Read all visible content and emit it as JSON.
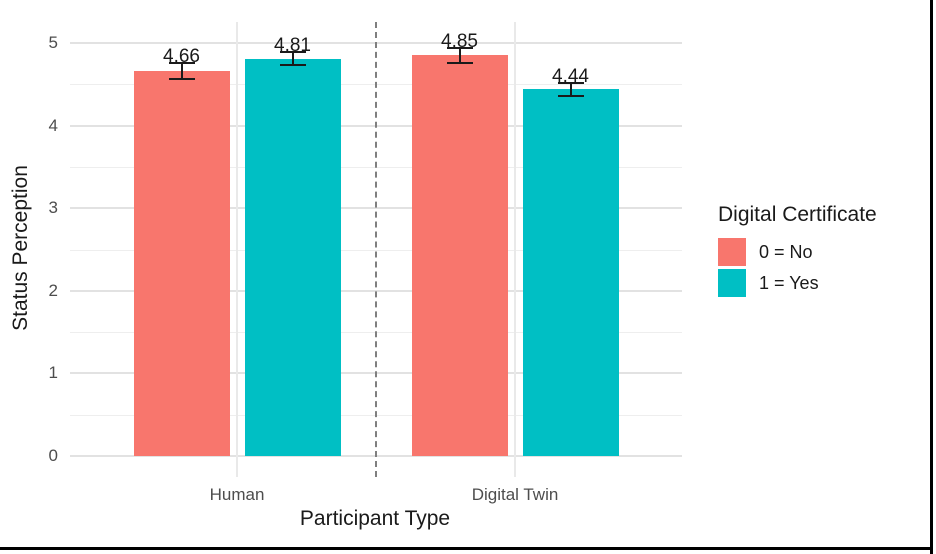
{
  "chart_data": {
    "type": "bar",
    "title": "",
    "xlabel": "Participant Type",
    "ylabel": "Status Perception",
    "categories": [
      "Human",
      "Digital Twin"
    ],
    "series": [
      {
        "name": "0 = No",
        "color": "#F8766D",
        "values": [
          4.66,
          4.85
        ],
        "errors": [
          0.1,
          0.09
        ],
        "value_labels": [
          "4.66",
          "4.85"
        ]
      },
      {
        "name": "1 = Yes",
        "color": "#00BFC4",
        "values": [
          4.81,
          4.44
        ],
        "errors": [
          0.08,
          0.08
        ],
        "value_labels": [
          "4.81",
          "4.44"
        ]
      }
    ],
    "ylim": [
      0,
      5
    ],
    "yticks": [
      0,
      1,
      2,
      3,
      4,
      5
    ],
    "minor_yticks": [
      0.5,
      1.5,
      2.5,
      3.5,
      4.5
    ],
    "grid": true,
    "legend_position": "right",
    "group_divider": {
      "style": "dashed",
      "between": [
        "Human",
        "Digital Twin"
      ],
      "color": "#7f7f7f"
    },
    "legend": {
      "title": "Digital Certificate",
      "entries": [
        {
          "label": "0 = No",
          "color": "#F8766D"
        },
        {
          "label": "1 = Yes",
          "color": "#00BFC4"
        }
      ]
    }
  },
  "colors": {
    "grid_major": "#e2e2e2",
    "grid_minor": "#eeeeee",
    "axis_text": "#4d4d4d",
    "axis_title": "#1a1a1a",
    "error_bar": "#1a1a1a",
    "frame": "#000000"
  }
}
